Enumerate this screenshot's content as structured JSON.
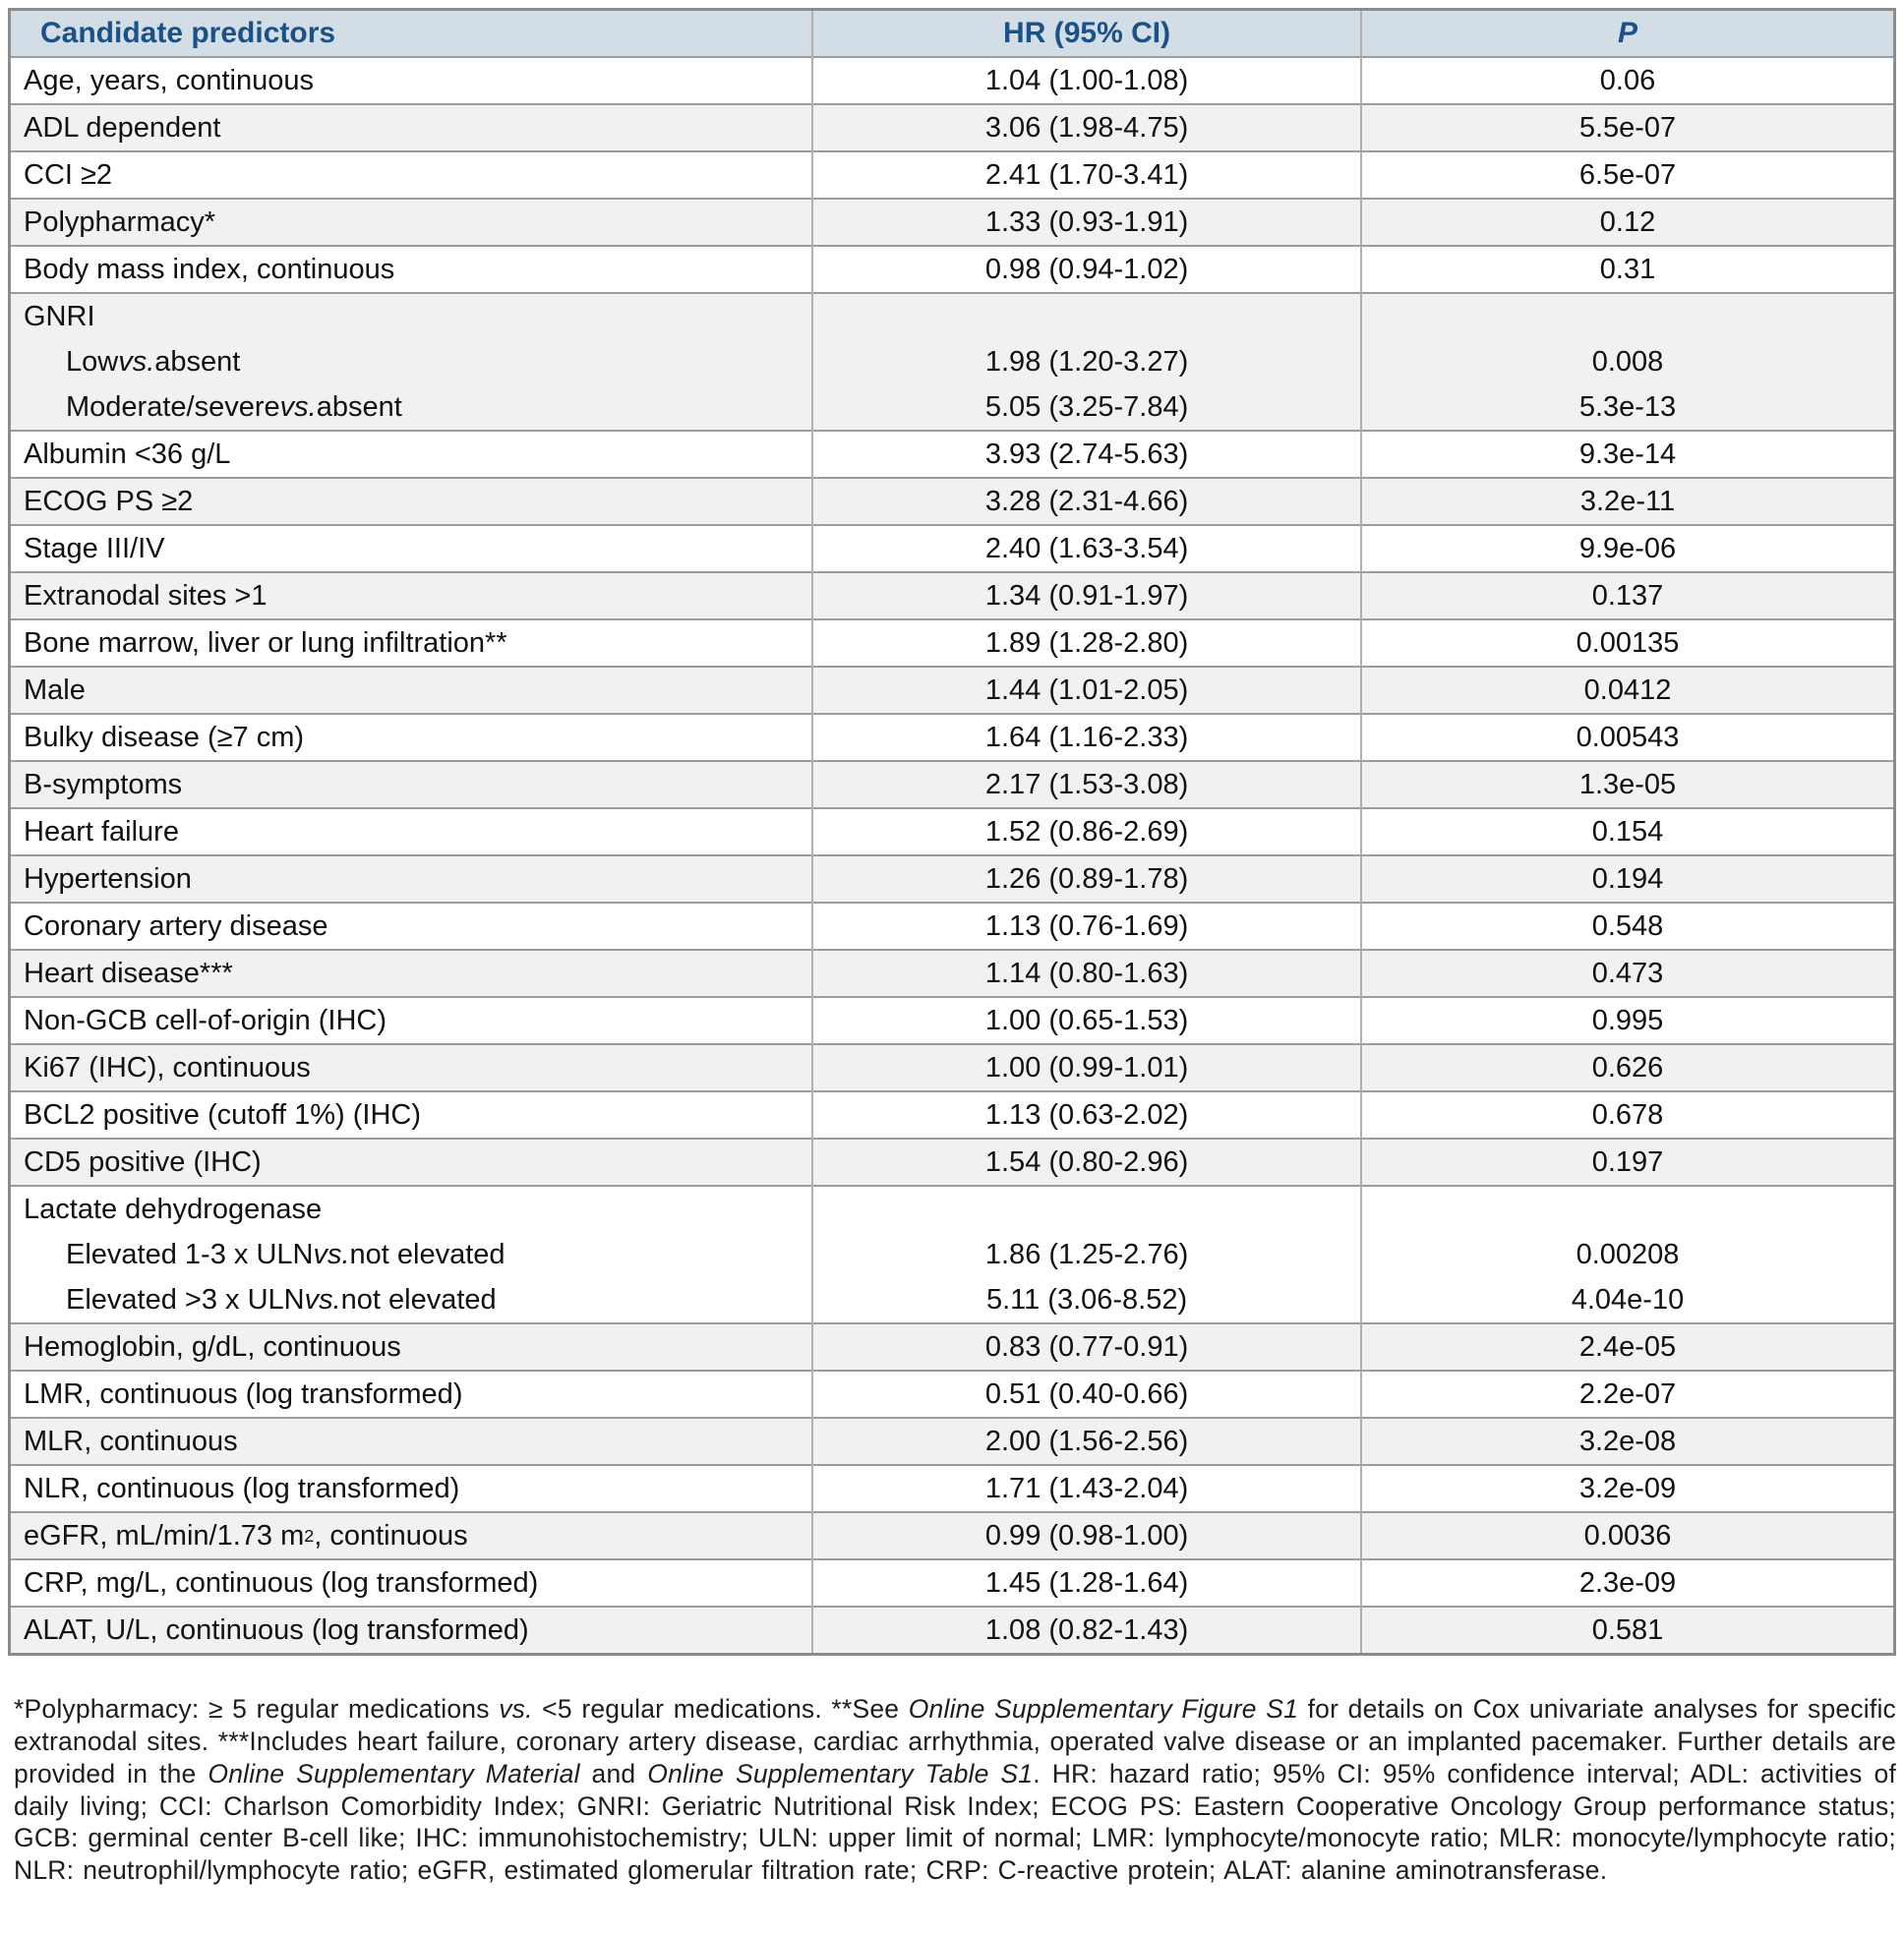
{
  "colors": {
    "header_bg": "#d3dde6",
    "header_text": "#1a5187",
    "row_alt": "#f1f1f1",
    "border_outer": "#8b8b8b",
    "border_row": "#9d9d9d",
    "border_col": "#b0b0b0"
  },
  "table": {
    "header": {
      "predictor": "Candidate predictors",
      "hr": "HR (95% CI)",
      "p": "P"
    },
    "rows": [
      {
        "label": "Age, years, continuous",
        "hr": "1.04 (1.00-1.08)",
        "p": "0.06"
      },
      {
        "label": "ADL dependent",
        "hr": "3.06 (1.98-4.75)",
        "p": "5.5e-07"
      },
      {
        "label": "CCI ≥2",
        "hr": "2.41 (1.70-3.41)",
        "p": "6.5e-07"
      },
      {
        "label": "Polypharmacy*",
        "hr": "1.33 (0.93-1.91)",
        "p": "0.12"
      },
      {
        "label": "Body mass index, continuous",
        "hr": "0.98 (0.94-1.02)",
        "p": "0.31"
      },
      {
        "group": "GNRI",
        "subrows": [
          {
            "label": [
              {
                "t": "Low "
              },
              {
                "t": "vs.",
                "i": true
              },
              {
                "t": " absent"
              }
            ],
            "hr": "1.98 (1.20-3.27)",
            "p": "0.008"
          },
          {
            "label": [
              {
                "t": "Moderate/severe "
              },
              {
                "t": "vs.",
                "i": true
              },
              {
                "t": " absent"
              }
            ],
            "hr": "5.05 (3.25-7.84)",
            "p": "5.3e-13"
          }
        ]
      },
      {
        "label": "Albumin <36 g/L",
        "hr": "3.93 (2.74-5.63)",
        "p": "9.3e-14"
      },
      {
        "label": "ECOG PS ≥2",
        "hr": "3.28 (2.31-4.66)",
        "p": "3.2e-11"
      },
      {
        "label": "Stage III/IV",
        "hr": "2.40 (1.63-3.54)",
        "p": "9.9e-06"
      },
      {
        "label": "Extranodal sites >1",
        "hr": "1.34 (0.91-1.97)",
        "p": "0.137"
      },
      {
        "label": "Bone marrow, liver or lung infiltration**",
        "hr": "1.89 (1.28-2.80)",
        "p": "0.00135"
      },
      {
        "label": "Male",
        "hr": "1.44 (1.01-2.05)",
        "p": "0.0412"
      },
      {
        "label": "Bulky disease (≥7 cm)",
        "hr": "1.64 (1.16-2.33)",
        "p": "0.00543"
      },
      {
        "label": "B-symptoms",
        "hr": "2.17 (1.53-3.08)",
        "p": "1.3e-05"
      },
      {
        "label": "Heart failure",
        "hr": "1.52 (0.86-2.69)",
        "p": "0.154"
      },
      {
        "label": "Hypertension",
        "hr": "1.26 (0.89-1.78)",
        "p": "0.194"
      },
      {
        "label": "Coronary artery disease",
        "hr": "1.13 (0.76-1.69)",
        "p": "0.548"
      },
      {
        "label": "Heart disease***",
        "hr": "1.14 (0.80-1.63)",
        "p": "0.473"
      },
      {
        "label": "Non-GCB cell-of-origin (IHC)",
        "hr": "1.00 (0.65-1.53)",
        "p": "0.995"
      },
      {
        "label": "Ki67 (IHC), continuous",
        "hr": "1.00 (0.99-1.01)",
        "p": "0.626"
      },
      {
        "label": "BCL2 positive (cutoff 1%) (IHC)",
        "hr": "1.13 (0.63-2.02)",
        "p": "0.678"
      },
      {
        "label": "CD5 positive (IHC)",
        "hr": "1.54 (0.80-2.96)",
        "p": "0.197"
      },
      {
        "group": "Lactate dehydrogenase",
        "subrows": [
          {
            "label": [
              {
                "t": "Elevated 1-3 x ULN "
              },
              {
                "t": "vs.",
                "i": true
              },
              {
                "t": " not elevated"
              }
            ],
            "hr": "1.86 (1.25-2.76)",
            "p": "0.00208"
          },
          {
            "label": [
              {
                "t": "Elevated >3 x ULN "
              },
              {
                "t": "vs.",
                "i": true
              },
              {
                "t": " not elevated"
              }
            ],
            "hr": "5.11 (3.06-8.52)",
            "p": "4.04e-10"
          }
        ]
      },
      {
        "label": "Hemoglobin, g/dL, continuous",
        "hr": "0.83 (0.77-0.91)",
        "p": "2.4e-05"
      },
      {
        "label": "LMR, continuous (log transformed)",
        "hr": "0.51 (0.40-0.66)",
        "p": "2.2e-07"
      },
      {
        "label": "MLR, continuous",
        "hr": "2.00 (1.56-2.56)",
        "p": "3.2e-08"
      },
      {
        "label": "NLR, continuous (log transformed)",
        "hr": "1.71 (1.43-2.04)",
        "p": "3.2e-09"
      },
      {
        "label": [
          {
            "t": "eGFR, mL/min/1.73 m"
          },
          {
            "t": "2",
            "sup": true
          },
          {
            "t": ", continuous"
          }
        ],
        "hr": "0.99 (0.98-1.00)",
        "p": "0.0036"
      },
      {
        "label": "CRP, mg/L, continuous (log transformed)",
        "hr": "1.45 (1.28-1.64)",
        "p": "2.3e-09"
      },
      {
        "label": "ALAT, U/L, continuous (log transformed)",
        "hr": "1.08 (0.82-1.43)",
        "p": "0.581"
      }
    ]
  },
  "footnote": {
    "segments": [
      {
        "t": "*Polypharmacy: ≥ 5 regular medications "
      },
      {
        "t": "vs.",
        "i": true
      },
      {
        "t": " <5 regular medications. **See "
      },
      {
        "t": "Online Supplementary Figure S1",
        "i": true
      },
      {
        "t": " for details on Cox univariate analyses for specific extranodal sites. ***Includes heart failure, coronary artery disease, cardiac arrhythmia, operated valve disease or an implanted pacemaker. Further details are provided in the "
      },
      {
        "t": "Online Supplementary Material",
        "i": true
      },
      {
        "t": " and "
      },
      {
        "t": "Online Supplementary Table S1",
        "i": true
      },
      {
        "t": ". HR: hazard ratio; 95% CI: 95% confidence interval; ADL: activities of daily living; CCI: Charlson Comorbidity Index; GNRI: Geriatric Nutritional Risk Index; ECOG PS: Eastern Cooperative Oncology Group performance status; GCB: germinal center B-cell like; IHC: immunohistochemistry; ULN: upper limit of normal; LMR: lymphocyte/monocyte ratio; MLR: monocyte/lymphocyte ratio; NLR: neutrophil/lymphocyte ratio; eGFR, estimated glomerular filtration rate; CRP: C-reactive protein; ALAT: alanine aminotransferase."
      }
    ]
  }
}
